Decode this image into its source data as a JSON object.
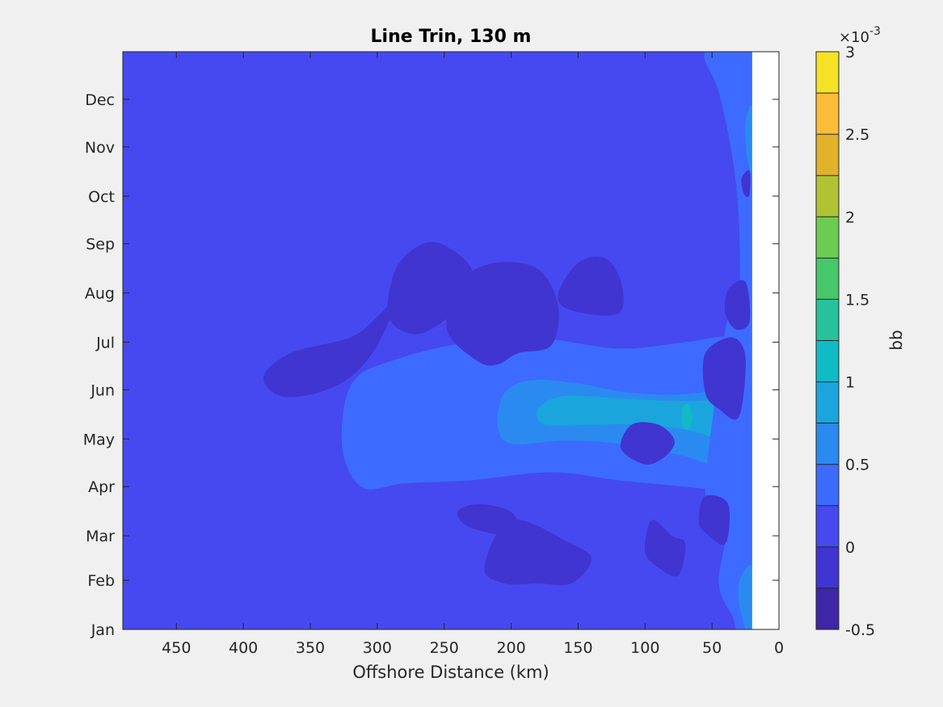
{
  "chart_data": {
    "type": "filled-contour",
    "title": "Line Trin, 130 m",
    "xlabel": "Offshore Distance (km)",
    "ylabel": "",
    "xlim": [
      0,
      490
    ],
    "x_direction": "reversed",
    "x_ticks": [
      450,
      400,
      350,
      300,
      250,
      200,
      150,
      100,
      50,
      0
    ],
    "y_ticks": [
      "Jan",
      "Feb",
      "Mar",
      "Apr",
      "May",
      "Jun",
      "Jul",
      "Aug",
      "Sep",
      "Oct",
      "Nov",
      "Dec"
    ],
    "y_tick_days": [
      1,
      32,
      60,
      91,
      121,
      152,
      182,
      213,
      244,
      274,
      305,
      335
    ],
    "ylim_days": [
      1,
      365
    ],
    "no_data_region_km": [
      0,
      20
    ],
    "colorbar": {
      "label": "bb",
      "exponent_label": "×10",
      "exponent_power": "-3",
      "ticks": [
        "3",
        "2.5",
        "2",
        "1.5",
        "1",
        "0.5",
        "0",
        "-0.5"
      ],
      "levels": [
        -0.5,
        -0.25,
        0,
        0.25,
        0.5,
        0.75,
        1,
        1.25,
        1.5,
        1.75,
        2,
        2.25,
        2.5,
        2.75,
        3
      ],
      "colors": [
        "#3e26a8",
        "#4035d0",
        "#4649ef",
        "#3d6bff",
        "#2b8aef",
        "#1ba5dd",
        "#10bbc5",
        "#26c29b",
        "#46c76a",
        "#6ccc52",
        "#b0c433",
        "#e1b22a",
        "#fdbd3b",
        "#f5e125"
      ]
    },
    "background_value": 0.1,
    "features": [
      {
        "band": 1,
        "points": [
          [
            82,
            1
          ],
          [
            82,
            80
          ],
          [
            42,
            45
          ],
          [
            33,
            0
          ]
        ]
      },
      {
        "band": 1,
        "points": [
          [
            28,
            45
          ],
          [
            40,
            20
          ],
          [
            30,
            35
          ]
        ]
      },
      {
        "band": 1,
        "points": [
          [
            175,
            0
          ],
          [
            145,
            0
          ],
          [
            115,
            15
          ],
          [
            100,
            50
          ],
          [
            95,
            100
          ],
          [
            75,
            90
          ],
          [
            63,
            110
          ],
          [
            115,
            170
          ],
          [
            185,
            180
          ],
          [
            205,
            130
          ],
          [
            195,
            0
          ]
        ]
      },
      {
        "band": 1,
        "points": [
          [
            92,
            0
          ],
          [
            95,
            20
          ],
          [
            80,
            30
          ],
          [
            55,
            10
          ],
          [
            30,
            35
          ],
          [
            25,
            20
          ],
          [
            30,
            -5
          ],
          [
            45,
            -10
          ],
          [
            82,
            -5
          ]
        ]
      },
      {
        "band": 2,
        "points": [
          [
            360,
            40
          ],
          [
            320,
            80
          ],
          [
            316,
            150
          ],
          [
            330,
            240
          ],
          [
            360,
            290
          ],
          [
            400,
            280
          ],
          [
            435,
            205
          ],
          [
            440,
            150
          ],
          [
            430,
            60
          ],
          [
            400,
            40
          ]
        ]
      },
      {
        "band": 2,
        "points": [
          [
            130,
            -60
          ],
          [
            150,
            -40
          ],
          [
            200,
            -20
          ],
          [
            250,
            -10
          ],
          [
            330,
            -10
          ],
          [
            350,
            20
          ],
          [
            350,
            80
          ],
          [
            360,
            150
          ],
          [
            350,
            250
          ],
          [
            310,
            320
          ],
          [
            250,
            370
          ],
          [
            160,
            390
          ],
          [
            100,
            385
          ],
          [
            40,
            395
          ],
          [
            20,
            380
          ],
          [
            20,
            160
          ],
          [
            0,
            0
          ]
        ]
      }
    ],
    "annotations": []
  }
}
